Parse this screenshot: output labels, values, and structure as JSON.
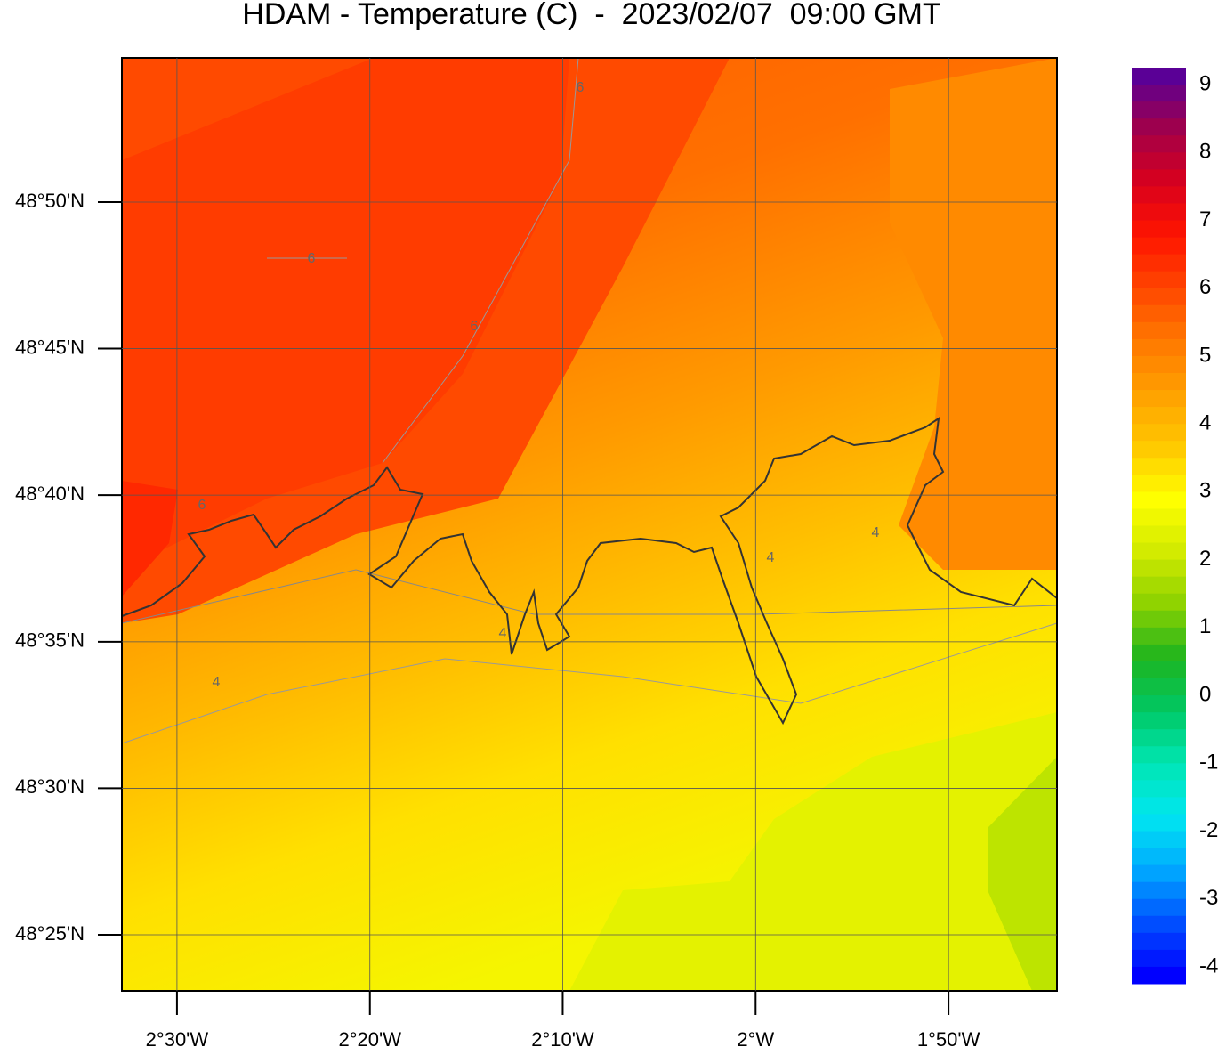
{
  "chart_data": {
    "type": "map",
    "title": "HDAM - Temperature (C)  -  2023/02/07  09:00 GMT",
    "xlim": [
      -2.5476,
      -1.7396
    ],
    "ylim": [
      48.3848,
      48.9153
    ],
    "xticks": [
      {
        "value": -2.5,
        "label": "2°30'W"
      },
      {
        "value": -2.3333,
        "label": "2°20'W"
      },
      {
        "value": -2.1667,
        "label": "2°10'W"
      },
      {
        "value": -2.0,
        "label": "2°W"
      },
      {
        "value": -1.8333,
        "label": "1°50'W"
      }
    ],
    "yticks": [
      {
        "value": 48.8333,
        "label": "48°50'N"
      },
      {
        "value": 48.75,
        "label": "48°45'N"
      },
      {
        "value": 48.6667,
        "label": "48°40'N"
      },
      {
        "value": 48.5833,
        "label": "48°35'N"
      },
      {
        "value": 48.5,
        "label": "48°30'N"
      },
      {
        "value": 48.4167,
        "label": "48°25'N"
      }
    ],
    "grid": true,
    "colorbar": {
      "lim": [
        -4.25,
        9.25
      ],
      "ticks": [
        9,
        8,
        7,
        6,
        5,
        4,
        3,
        2,
        1,
        0,
        -1,
        -2,
        -3,
        -4
      ],
      "colors": [
        "#5a0096",
        "#a0004b",
        "#d7001e",
        "#ff1400",
        "#ff4600",
        "#ff7800",
        "#ffa000",
        "#ffc800",
        "#ffff00",
        "#d2eb00",
        "#8cd200",
        "#1eb41e",
        "#00c864",
        "#00e6b4",
        "#00e6f0",
        "#00aaff",
        "#0050ff",
        "#0000ff"
      ]
    },
    "contour_labels": [
      "6",
      "6",
      "6",
      "6",
      "4",
      "4",
      "4",
      "4"
    ]
  }
}
